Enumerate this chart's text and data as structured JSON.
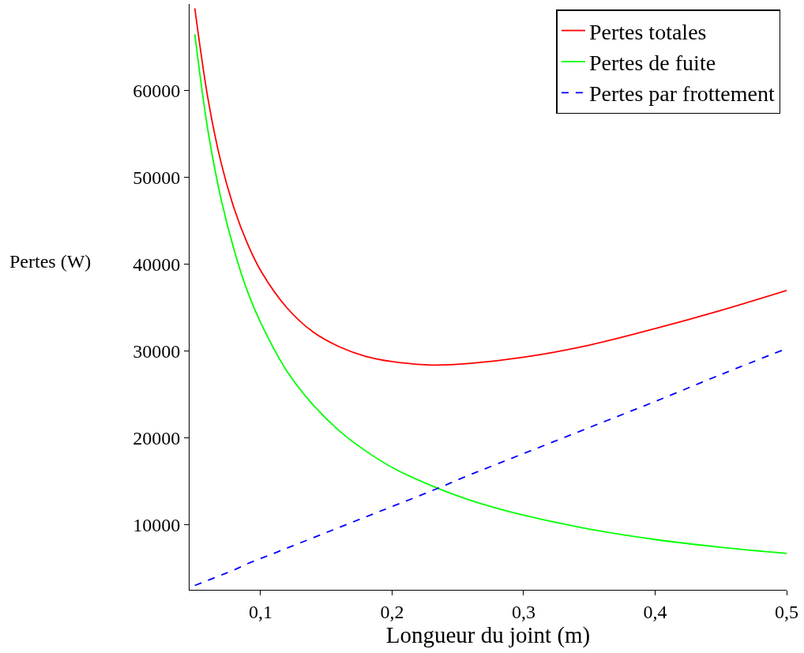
{
  "chart_data": {
    "type": "line",
    "xlabel": "Longueur du joint (m)",
    "ylabel": "Pertes (W)",
    "x": [
      0.05,
      0.06,
      0.07,
      0.08,
      0.09,
      0.1,
      0.12,
      0.14,
      0.16,
      0.18,
      0.2,
      0.23,
      0.26,
      0.3,
      0.35,
      0.4,
      0.45,
      0.5
    ],
    "series": [
      {
        "name": "Pertes totales",
        "color": "#ff0000",
        "line_style": "solid",
        "values": [
          69500,
          59100,
          51700,
          46400,
          42400,
          39300,
          35000,
          32200,
          30500,
          29400,
          28800,
          28400,
          28600,
          29300,
          30700,
          32600,
          34700,
          37000
        ]
      },
      {
        "name": "Pertes de fuite",
        "color": "#00ff00",
        "line_style": "solid",
        "values": [
          66500,
          55400,
          47500,
          41600,
          36900,
          33300,
          27700,
          23800,
          20800,
          18500,
          16600,
          14500,
          12800,
          11100,
          9500,
          8300,
          7400,
          6700
        ]
      },
      {
        "name": "Pertes par frottement",
        "color": "#0000ff",
        "line_style": "dashed",
        "values": [
          3000,
          3600,
          4200,
          4800,
          5500,
          6100,
          7300,
          8500,
          9700,
          10900,
          12100,
          13900,
          15800,
          18200,
          21200,
          24200,
          27300,
          30300
        ]
      }
    ],
    "xlim": [
      0.046,
      0.5
    ],
    "ylim": [
      2500,
      70000
    ],
    "xticks": [
      {
        "value": 0.1,
        "label": "0,1"
      },
      {
        "value": 0.2,
        "label": "0,2"
      },
      {
        "value": 0.3,
        "label": "0,3"
      },
      {
        "value": 0.4,
        "label": "0,4"
      },
      {
        "value": 0.5,
        "label": "0,5"
      }
    ],
    "yticks": [
      10000,
      20000,
      30000,
      40000,
      50000,
      60000
    ],
    "legend": "top right"
  }
}
